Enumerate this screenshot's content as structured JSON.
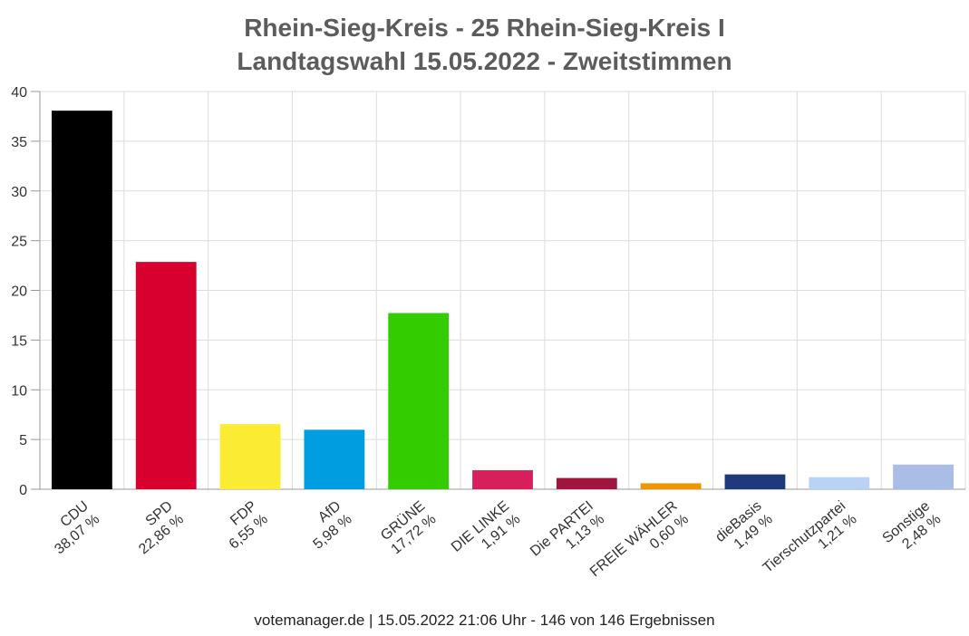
{
  "title_line1": "Rhein-Sieg-Kreis - 25 Rhein-Sieg-Kreis I",
  "title_line2": "Landtagswahl 15.05.2022  - Zweitstimmen",
  "footer": "votemanager.de | 15.05.2022 21:06 Uhr - 146 von 146 Ergebnissen",
  "chart_data": {
    "type": "bar",
    "title": "Rhein-Sieg-Kreis - 25 Rhein-Sieg-Kreis I\nLandtagswahl 15.05.2022  - Zweitstimmen",
    "xlabel": "",
    "ylabel": "",
    "ylim": [
      0,
      40
    ],
    "yticks": [
      0,
      5,
      10,
      15,
      20,
      25,
      30,
      35,
      40
    ],
    "grid": true,
    "categories": [
      "CDU",
      "SPD",
      "FDP",
      "AfD",
      "GRÜNE",
      "DIE LINKE",
      "Die PARTEI",
      "FREIE WÄHLER",
      "dieBasis",
      "Tierschutzpartei",
      "Sonstige"
    ],
    "value_labels": [
      "38,07 %",
      "22,86 %",
      "6,55 %",
      "5,98 %",
      "17,72 %",
      "1,91 %",
      "1,13 %",
      "0,60 %",
      "1,49 %",
      "1,21 %",
      "2,48 %"
    ],
    "values": [
      38.07,
      22.86,
      6.55,
      5.98,
      17.72,
      1.91,
      1.13,
      0.6,
      1.49,
      1.21,
      2.48
    ],
    "colors": [
      "#000000",
      "#d8002e",
      "#fbeb32",
      "#009ee0",
      "#33cc00",
      "#d61f5b",
      "#a0153e",
      "#f29400",
      "#1e3a7b",
      "#b9d3f5",
      "#aabde6"
    ]
  }
}
